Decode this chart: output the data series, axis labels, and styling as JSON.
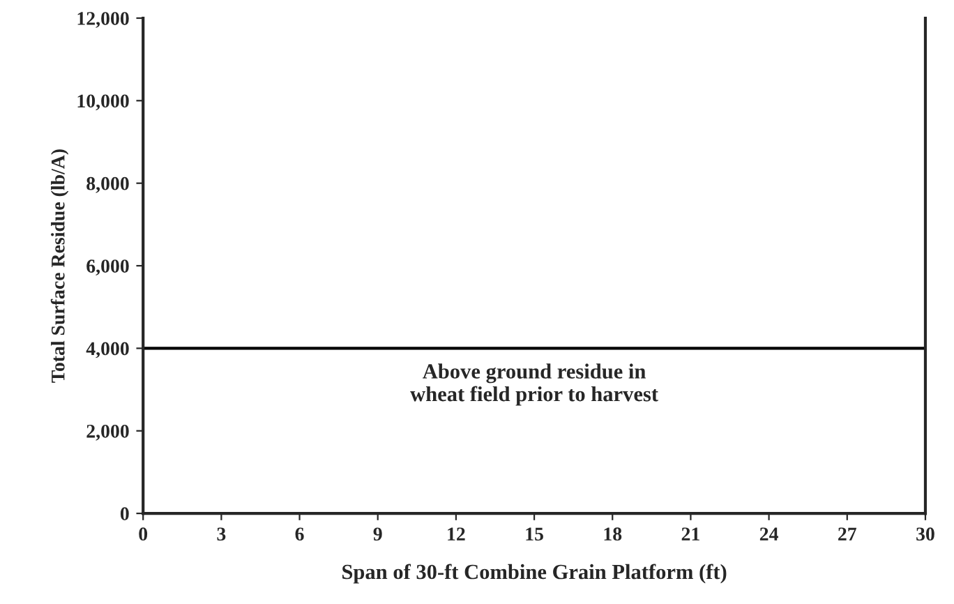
{
  "chart_data": {
    "type": "line",
    "xlabel": "Span of 30-ft Combine Grain Platform (ft)",
    "ylabel": "Total Surface Residue (lb/A)",
    "x": [
      0,
      30
    ],
    "series": [
      {
        "color": "#000000",
        "values": [
          4000,
          4000
        ]
      }
    ],
    "xlim": [
      0,
      30
    ],
    "xticks": [
      0,
      3,
      6,
      9,
      12,
      15,
      18,
      21,
      24,
      27,
      30
    ],
    "ylim": [
      0,
      12000
    ],
    "yticks": [
      {
        "value": 0,
        "label": "0"
      },
      {
        "value": 2000,
        "label": "2,000"
      },
      {
        "value": 4000,
        "label": "4,000"
      },
      {
        "value": 6000,
        "label": "6,000"
      },
      {
        "value": 8000,
        "label": "8,000"
      },
      {
        "value": 10000,
        "label": "10,000"
      },
      {
        "value": 12000,
        "label": "12,000"
      }
    ],
    "annotations": [
      "Above ground residue in\nwheat field prior to harvest"
    ],
    "grid": false,
    "legend": false,
    "marker": "none",
    "line_style": "solid"
  }
}
